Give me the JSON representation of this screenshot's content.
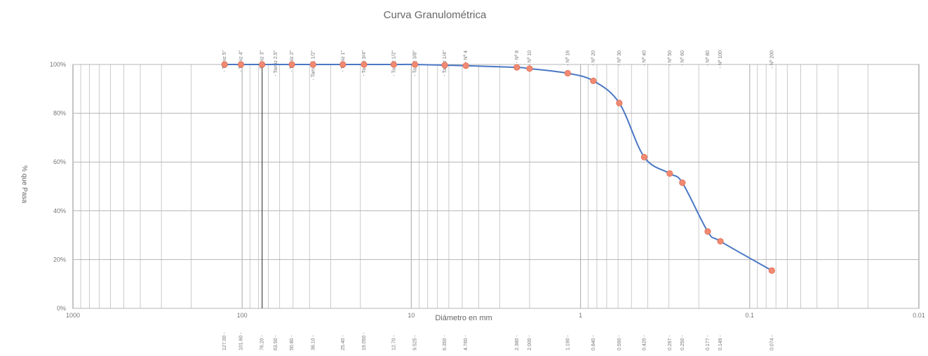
{
  "chart_data": {
    "type": "line",
    "title": "Curva Granulométrica",
    "xlabel": "Diámetro en mm",
    "ylabel": "% que Pasa",
    "x_scale": "log",
    "x_reversed": true,
    "xlim": [
      1000,
      0.01
    ],
    "ylim": [
      0,
      100
    ],
    "grid": true,
    "y_ticks": [
      "0%",
      "20%",
      "40%",
      "60%",
      "80%",
      "100%"
    ],
    "y_tick_values": [
      0,
      20,
      40,
      60,
      80,
      100
    ],
    "x_ticks": [
      "1000",
      "100",
      "10",
      "1",
      "0.1",
      "0.01"
    ],
    "x_tick_values": [
      1000,
      100,
      10,
      1,
      0.1,
      0.01
    ],
    "sieves": [
      {
        "name": "Tamiz 5\"",
        "x": 127.0
      },
      {
        "name": "Tamiz 4\"",
        "x": 101.6
      },
      {
        "name": "Tamiz 3\"",
        "x": 76.2
      },
      {
        "name": "Tamiz 2.5\"",
        "x": 63.5
      },
      {
        "name": "Tamiz 2\"",
        "x": 50.8
      },
      {
        "name": "Tamiz 1 1/2\"",
        "x": 38.1
      },
      {
        "name": "Tamiz 1\"",
        "x": 25.4
      },
      {
        "name": "Tamiz 3/4\"",
        "x": 19.05
      },
      {
        "name": "Tamiz 1/2\"",
        "x": 12.7
      },
      {
        "name": "Tamiz 3/8\"",
        "x": 9.525
      },
      {
        "name": "Tamiz 1/4\"",
        "x": 6.35
      },
      {
        "name": "Nº 4",
        "x": 4.76
      },
      {
        "name": "Nº 8",
        "x": 2.38
      },
      {
        "name": "Nº 10",
        "x": 2.0
      },
      {
        "name": "Nº 16",
        "x": 1.19
      },
      {
        "name": "Nº 20",
        "x": 0.84
      },
      {
        "name": "Nº 30",
        "x": 0.59
      },
      {
        "name": "Nº 40",
        "x": 0.42
      },
      {
        "name": "Nº 50",
        "x": 0.297
      },
      {
        "name": "Nº 60",
        "x": 0.25
      },
      {
        "name": "Nº 80",
        "x": 0.177
      },
      {
        "name": "Nº 100",
        "x": 0.149
      },
      {
        "name": "Nº 200",
        "x": 0.074
      }
    ],
    "size_labels": [
      {
        "text": "127.00",
        "x": 127.0
      },
      {
        "text": "101.60",
        "x": 101.6
      },
      {
        "text": "76.20",
        "x": 76.2
      },
      {
        "text": "63.50",
        "x": 63.5
      },
      {
        "text": "50.80",
        "x": 50.8
      },
      {
        "text": "38.10",
        "x": 38.1
      },
      {
        "text": "25.40",
        "x": 25.4
      },
      {
        "text": "19.050",
        "x": 19.05
      },
      {
        "text": "12.70",
        "x": 12.7
      },
      {
        "text": "9.525",
        "x": 9.525
      },
      {
        "text": "6.350",
        "x": 6.35
      },
      {
        "text": "4.760",
        "x": 4.76
      },
      {
        "text": "2.380",
        "x": 2.38
      },
      {
        "text": "2.000",
        "x": 2.0
      },
      {
        "text": "1.190",
        "x": 1.19
      },
      {
        "text": "0.840",
        "x": 0.84
      },
      {
        "text": "0.590",
        "x": 0.59
      },
      {
        "text": "0.420",
        "x": 0.42
      },
      {
        "text": "0.297",
        "x": 0.297
      },
      {
        "text": "0.250",
        "x": 0.25
      },
      {
        "text": "0.177",
        "x": 0.177
      },
      {
        "text": "0.149",
        "x": 0.149
      },
      {
        "text": "0.074",
        "x": 0.074
      }
    ],
    "series": [
      {
        "x": [
          127.0,
          101.6,
          76.2,
          50.8,
          38.1,
          25.4,
          19.05,
          12.7,
          9.525,
          6.35,
          4.76,
          2.38,
          2.0,
          1.19,
          0.84,
          0.59,
          0.42,
          0.297,
          0.25,
          0.177,
          0.149,
          0.074
        ],
        "y": [
          100,
          100,
          100,
          100,
          100,
          100,
          100,
          100,
          100,
          99.7,
          99.5,
          98.8,
          98.3,
          96.4,
          93.3,
          84.2,
          62.0,
          55.3,
          51.5,
          31.5,
          27.5,
          15.5
        ]
      }
    ],
    "line_color": "#4a77c4",
    "marker_color": "#f08a72",
    "grid_color": "#b5b5b5"
  }
}
